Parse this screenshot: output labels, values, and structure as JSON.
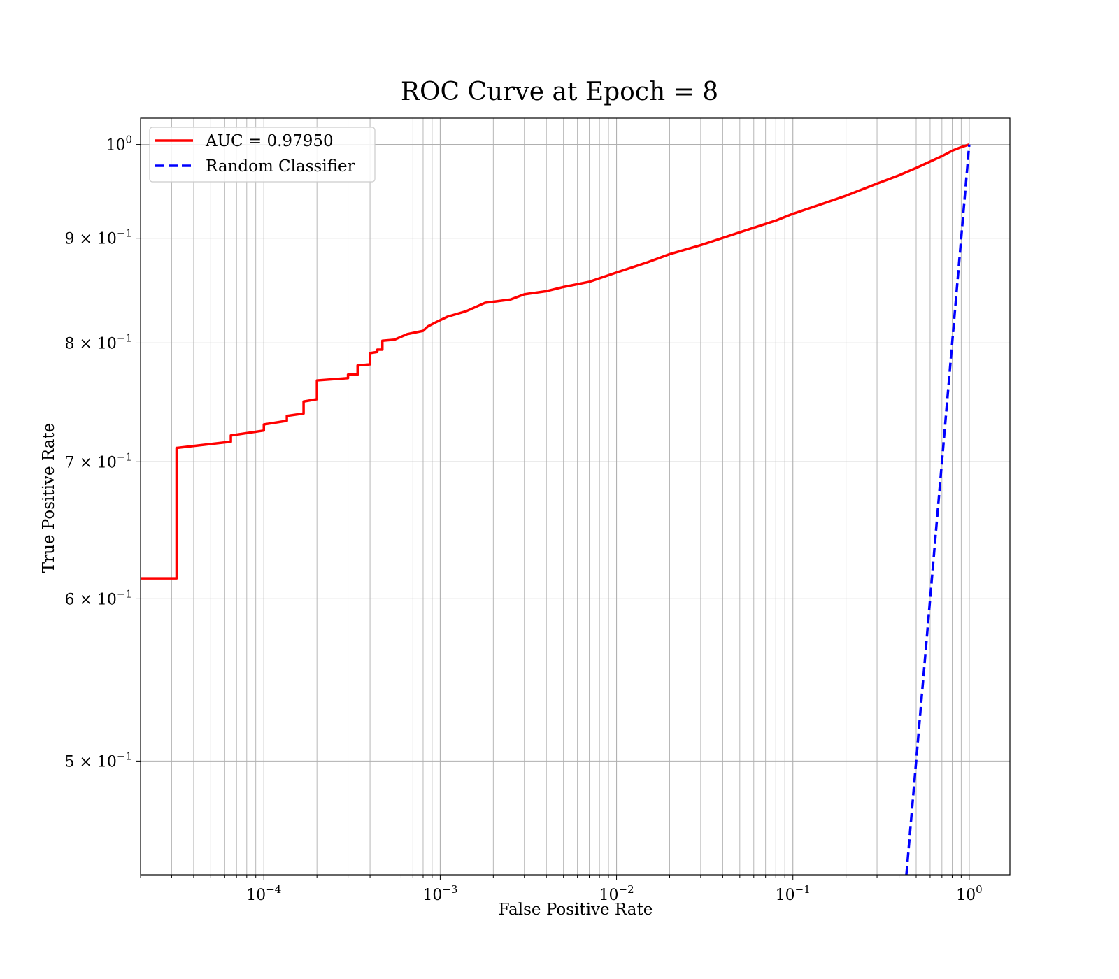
{
  "chart_data": {
    "type": "line",
    "title": "ROC Curve at Epoch = 8",
    "xlabel": "False Positive Rate",
    "ylabel": "True Positive Rate",
    "xscale": "log",
    "yscale": "log",
    "xlim": [
      2e-05,
      1.7
    ],
    "ylim": [
      0.44,
      1.03
    ],
    "grid": "both major and minor",
    "legend_position": "upper-left",
    "x_ticks": [
      {
        "value": 0.0001,
        "base": "10",
        "exp": "−4"
      },
      {
        "value": 0.001,
        "base": "10",
        "exp": "−3"
      },
      {
        "value": 0.01,
        "base": "10",
        "exp": "−2"
      },
      {
        "value": 0.1,
        "base": "10",
        "exp": "−1"
      },
      {
        "value": 1,
        "base": "10",
        "exp": "0"
      }
    ],
    "y_ticks": [
      {
        "value": 1.0,
        "base": "10",
        "exp": "0"
      },
      {
        "value": 0.9,
        "base": "9 × 10",
        "exp": "−1"
      },
      {
        "value": 0.8,
        "base": "8 × 10",
        "exp": "−1"
      },
      {
        "value": 0.7,
        "base": "7 × 10",
        "exp": "−1"
      },
      {
        "value": 0.6,
        "base": "6 × 10",
        "exp": "−1"
      },
      {
        "value": 0.5,
        "base": "5 × 10",
        "exp": "−1"
      }
    ],
    "series": [
      {
        "name": "AUC = 0.97950",
        "color": "#ff0000",
        "style": "solid",
        "points": [
          [
            2e-05,
            0.614
          ],
          [
            3.2e-05,
            0.614
          ],
          [
            3.2e-05,
            0.711
          ],
          [
            6.5e-05,
            0.716
          ],
          [
            6.5e-05,
            0.721
          ],
          [
            0.0001,
            0.725
          ],
          [
            0.0001,
            0.73
          ],
          [
            0.000135,
            0.733
          ],
          [
            0.000135,
            0.737
          ],
          [
            0.000168,
            0.739
          ],
          [
            0.000168,
            0.749
          ],
          [
            0.0002,
            0.751
          ],
          [
            0.0002,
            0.767
          ],
          [
            0.0003,
            0.769
          ],
          [
            0.0003,
            0.772
          ],
          [
            0.00034,
            0.772
          ],
          [
            0.00034,
            0.78
          ],
          [
            0.0004,
            0.781
          ],
          [
            0.0004,
            0.791
          ],
          [
            0.00044,
            0.792
          ],
          [
            0.00044,
            0.794
          ],
          [
            0.00047,
            0.794
          ],
          [
            0.00047,
            0.802
          ],
          [
            0.00055,
            0.803
          ],
          [
            0.00065,
            0.808
          ],
          [
            0.0008,
            0.811
          ],
          [
            0.00085,
            0.815
          ],
          [
            0.00095,
            0.819
          ],
          [
            0.0011,
            0.824
          ],
          [
            0.0014,
            0.829
          ],
          [
            0.0018,
            0.837
          ],
          [
            0.0025,
            0.84
          ],
          [
            0.003,
            0.845
          ],
          [
            0.004,
            0.848
          ],
          [
            0.005,
            0.852
          ],
          [
            0.007,
            0.857
          ],
          [
            0.01,
            0.866
          ],
          [
            0.015,
            0.876
          ],
          [
            0.02,
            0.884
          ],
          [
            0.03,
            0.893
          ],
          [
            0.05,
            0.906
          ],
          [
            0.08,
            0.918
          ],
          [
            0.1,
            0.925
          ],
          [
            0.15,
            0.936
          ],
          [
            0.2,
            0.944
          ],
          [
            0.3,
            0.957
          ],
          [
            0.4,
            0.966
          ],
          [
            0.5,
            0.974
          ],
          [
            0.6,
            0.981
          ],
          [
            0.7,
            0.987
          ],
          [
            0.8,
            0.993
          ],
          [
            0.9,
            0.997
          ],
          [
            1.0,
            1.0
          ]
        ]
      },
      {
        "name": "Random Classifier",
        "color": "#0000ff",
        "style": "dashed",
        "points": [
          [
            0.44,
            0.44
          ],
          [
            0.5,
            0.5
          ],
          [
            0.6,
            0.6
          ],
          [
            0.7,
            0.7
          ],
          [
            0.8,
            0.8
          ],
          [
            0.9,
            0.9
          ],
          [
            1.0,
            1.0
          ]
        ]
      }
    ]
  }
}
